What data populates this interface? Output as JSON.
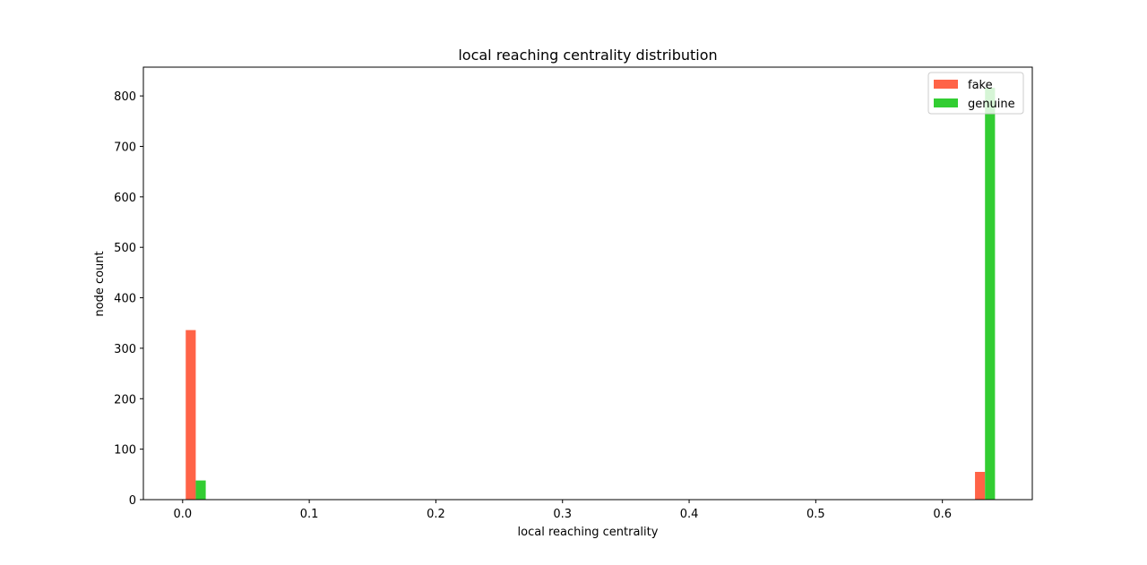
{
  "chart_data": {
    "type": "bar",
    "title": "local reaching centrality distribution",
    "xlabel": "local reaching centrality",
    "ylabel": "node count",
    "xlim": [
      -0.031,
      0.671
    ],
    "ylim": [
      0,
      857
    ],
    "xticks": [
      0.0,
      0.1,
      0.2,
      0.3,
      0.4,
      0.5,
      0.6
    ],
    "xtick_labels": [
      "0.0",
      "0.1",
      "0.2",
      "0.3",
      "0.4",
      "0.5",
      "0.6"
    ],
    "yticks": [
      0,
      100,
      200,
      300,
      400,
      500,
      600,
      700,
      800
    ],
    "ytick_labels": [
      "0",
      "100",
      "200",
      "300",
      "400",
      "500",
      "600",
      "700",
      "800"
    ],
    "bar_width": 0.0079,
    "grid": false,
    "legend_position": "top-right",
    "series": [
      {
        "name": "fake",
        "color": "#ff6347",
        "points": [
          {
            "x": 0.0064,
            "y": 336
          },
          {
            "x": 0.6297,
            "y": 55
          }
        ]
      },
      {
        "name": "genuine",
        "color": "#32cd32",
        "points": [
          {
            "x": 0.0143,
            "y": 38
          },
          {
            "x": 0.6376,
            "y": 816
          }
        ]
      }
    ]
  }
}
